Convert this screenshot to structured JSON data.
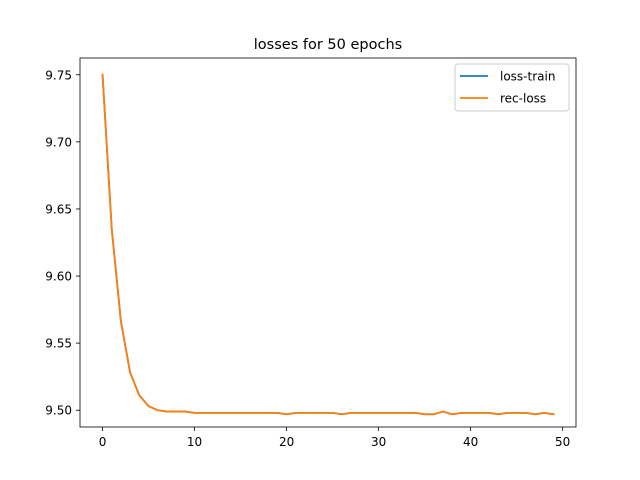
{
  "chart_data": {
    "type": "line",
    "title": "losses for 50 epochs",
    "xlabel": "",
    "ylabel": "",
    "xlim": [
      -2.45,
      51.45
    ],
    "ylim": [
      9.4875,
      9.7625
    ],
    "x_ticks": [
      0,
      10,
      20,
      30,
      40,
      50
    ],
    "y_ticks": [
      9.5,
      9.55,
      9.6,
      9.65,
      9.7,
      9.75
    ],
    "y_tick_labels": [
      "9.50",
      "9.55",
      "9.60",
      "9.65",
      "9.70",
      "9.75"
    ],
    "grid": false,
    "legend_position": "top-right",
    "x": [
      0,
      1,
      2,
      3,
      4,
      5,
      6,
      7,
      8,
      9,
      10,
      11,
      12,
      13,
      14,
      15,
      16,
      17,
      18,
      19,
      20,
      21,
      22,
      23,
      24,
      25,
      26,
      27,
      28,
      29,
      30,
      31,
      32,
      33,
      34,
      35,
      36,
      37,
      38,
      39,
      40,
      41,
      42,
      43,
      44,
      45,
      46,
      47,
      48,
      49
    ],
    "series": [
      {
        "name": "loss-train",
        "color": "#1f77b4",
        "values": [
          9.75,
          9.635,
          9.566,
          9.528,
          9.511,
          9.503,
          9.5,
          9.499,
          9.499,
          9.499,
          9.498,
          9.498,
          9.498,
          9.498,
          9.498,
          9.498,
          9.498,
          9.498,
          9.498,
          9.498,
          9.497,
          9.498,
          9.498,
          9.498,
          9.498,
          9.498,
          9.497,
          9.498,
          9.498,
          9.498,
          9.498,
          9.498,
          9.498,
          9.498,
          9.498,
          9.497,
          9.497,
          9.499,
          9.497,
          9.498,
          9.498,
          9.498,
          9.498,
          9.497,
          9.498,
          9.498,
          9.498,
          9.497,
          9.498,
          9.497
        ]
      },
      {
        "name": "rec-loss",
        "color": "#ff7f0e",
        "values": [
          9.75,
          9.635,
          9.566,
          9.528,
          9.511,
          9.503,
          9.5,
          9.499,
          9.499,
          9.499,
          9.498,
          9.498,
          9.498,
          9.498,
          9.498,
          9.498,
          9.498,
          9.498,
          9.498,
          9.498,
          9.497,
          9.498,
          9.498,
          9.498,
          9.498,
          9.498,
          9.497,
          9.498,
          9.498,
          9.498,
          9.498,
          9.498,
          9.498,
          9.498,
          9.498,
          9.497,
          9.497,
          9.499,
          9.497,
          9.498,
          9.498,
          9.498,
          9.498,
          9.497,
          9.498,
          9.498,
          9.498,
          9.497,
          9.498,
          9.497
        ]
      }
    ]
  }
}
